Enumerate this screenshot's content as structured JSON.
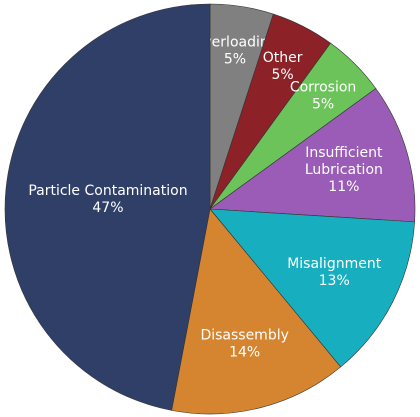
{
  "chart_data": {
    "type": "pie",
    "categories": [
      "Overloading",
      "Other",
      "Corrosion",
      "Insufficient Lubrication",
      "Misalignment",
      "Disassembly",
      "Particle Contamination"
    ],
    "values": [
      5,
      5,
      5,
      11,
      13,
      14,
      47
    ],
    "value_labels": [
      "5%",
      "5%",
      "5%",
      "11%",
      "13%",
      "14%",
      "47%"
    ],
    "colors": [
      "#808080",
      "#8c2228",
      "#6cc35a",
      "#9a5cb6",
      "#17afbf",
      "#d5842f",
      "#2f3f68"
    ]
  }
}
